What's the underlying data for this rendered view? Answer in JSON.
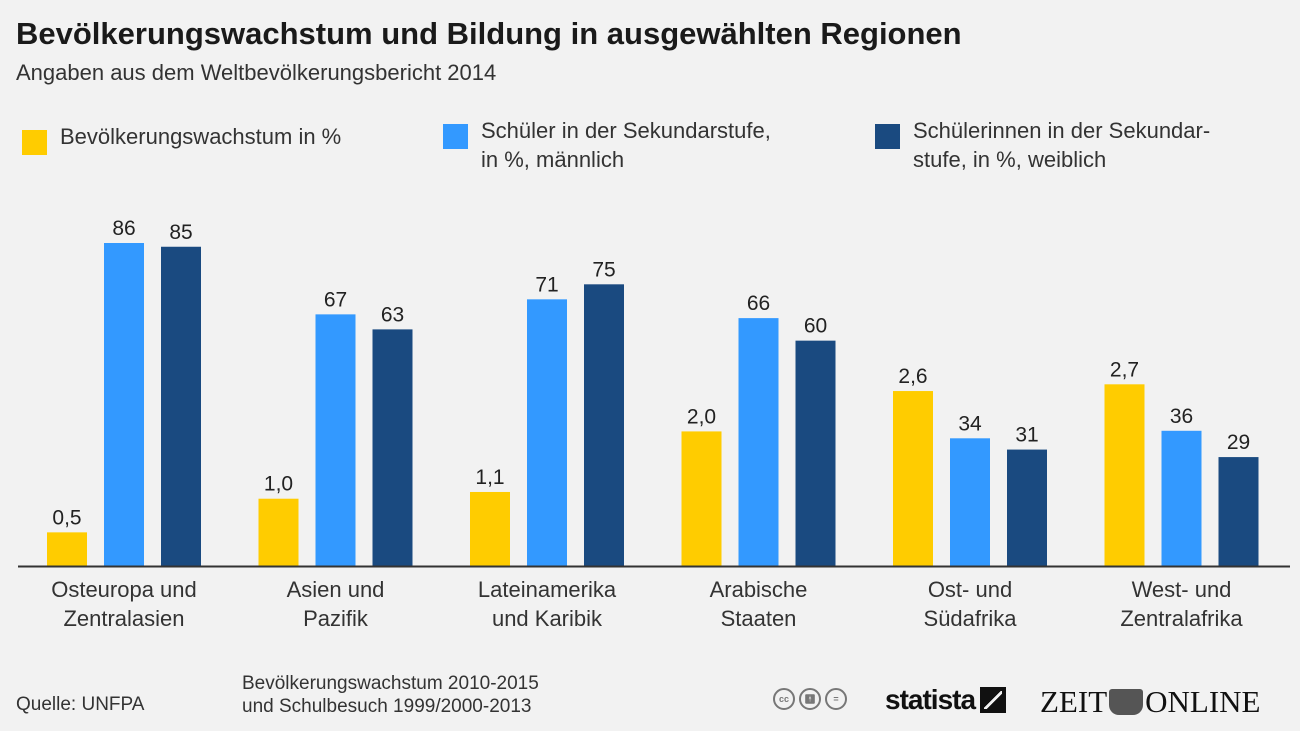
{
  "header": {
    "title": "Bevölkerungswachstum und Bildung in ausgewählten Regionen",
    "subtitle": "Angaben aus dem Weltbevölkerungsbericht 2014"
  },
  "legend": [
    {
      "label": "Bevölkerungswachstum in %",
      "color": "#ffcc00"
    },
    {
      "label": "Schüler in der Sekundarstufe,\nin %, männlich",
      "color": "#3399ff"
    },
    {
      "label": "Schülerinnen in der Sekundar-\nstufe, in %, weiblich",
      "color": "#1a4a80"
    }
  ],
  "chart_data": {
    "type": "bar",
    "title": "Bevölkerungswachstum und Bildung in ausgewählten Regionen",
    "subtitle": "Angaben aus dem Weltbevölkerungsbericht 2014",
    "xlabel": "",
    "ylabel": "",
    "grid": false,
    "legend_position": "top",
    "categories": [
      [
        "Osteuropa und",
        "Zentralasien"
      ],
      [
        "Asien und",
        "Pazifik"
      ],
      [
        "Lateinamerika",
        "und Karibik"
      ],
      [
        "Arabische",
        "Staaten"
      ],
      [
        "Ost- und",
        "Südafrika"
      ],
      [
        "West- und",
        "Zentralafrika"
      ]
    ],
    "series": [
      {
        "name": "Bevölkerungswachstum in %",
        "color": "#ffcc00",
        "values": [
          0.5,
          1.0,
          1.1,
          2.0,
          2.6,
          2.7
        ],
        "labels": [
          "0,5",
          "1,0",
          "1,1",
          "2,0",
          "2,6",
          "2,7"
        ],
        "ylim": [
          0,
          4.8
        ]
      },
      {
        "name": "Schüler in der Sekundarstufe, in %, männlich",
        "color": "#3399ff",
        "values": [
          86,
          67,
          71,
          66,
          34,
          36
        ],
        "labels": [
          "86",
          "67",
          "71",
          "66",
          "34",
          "36"
        ],
        "ylim": [
          0,
          86
        ]
      },
      {
        "name": "Schülerinnen in der Sekundarstufe, in %, weiblich",
        "color": "#1a4a80",
        "values": [
          85,
          63,
          75,
          60,
          31,
          29
        ],
        "labels": [
          "85",
          "63",
          "75",
          "60",
          "31",
          "29"
        ],
        "ylim": [
          0,
          86
        ]
      }
    ]
  },
  "footer": {
    "source": "Quelle: UNFPA",
    "note": "Bevölkerungswachstum 2010-2015\nund Schulbesuch 1999/2000-2013",
    "cc_icons": [
      "cc",
      "by",
      "nd"
    ],
    "statista_logo": "statista",
    "zeit_logo_left": "ZEIT",
    "zeit_logo_right": "ONLINE"
  }
}
